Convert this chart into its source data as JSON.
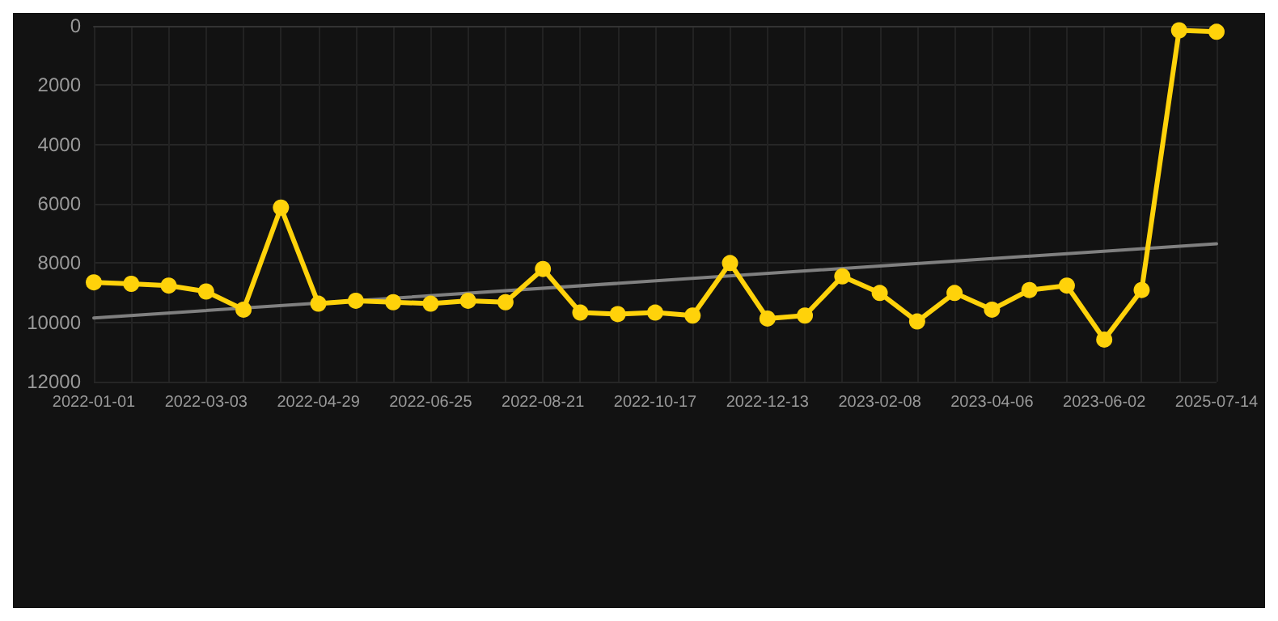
{
  "chart_data": {
    "type": "line",
    "categories": [
      "2022-01-01",
      null,
      null,
      "2022-03-03",
      null,
      null,
      "2022-04-29",
      null,
      null,
      "2022-06-25",
      null,
      null,
      "2022-08-21",
      null,
      null,
      "2022-10-17",
      null,
      null,
      "2022-12-13",
      null,
      null,
      "2023-02-08",
      null,
      null,
      "2023-04-06",
      null,
      null,
      "2023-06-02",
      null,
      null,
      "2025-07-14"
    ],
    "series": [
      {
        "color": "#ffd20a",
        "values": [
          8650,
          8700,
          8760,
          8960,
          9570,
          6130,
          9370,
          9270,
          9320,
          9370,
          9270,
          9320,
          8200,
          9670,
          9720,
          9670,
          9770,
          8000,
          9870,
          9770,
          8450,
          9010,
          9970,
          9010,
          9570,
          8910,
          8760,
          10580,
          8910,
          150,
          200
        ]
      },
      {
        "type": "line",
        "color": "#808080",
        "marker": "none",
        "values": [
          9850,
          null,
          null,
          null,
          null,
          null,
          null,
          null,
          null,
          null,
          null,
          null,
          null,
          null,
          null,
          null,
          null,
          null,
          null,
          null,
          null,
          null,
          null,
          null,
          null,
          null,
          null,
          null,
          null,
          null,
          7350
        ]
      }
    ],
    "ylim": [
      12000,
      0
    ],
    "yticks": [
      0,
      2000,
      4000,
      6000,
      8000,
      10000,
      12000
    ],
    "grid": true,
    "marker": "circle",
    "line_style": "solid"
  }
}
